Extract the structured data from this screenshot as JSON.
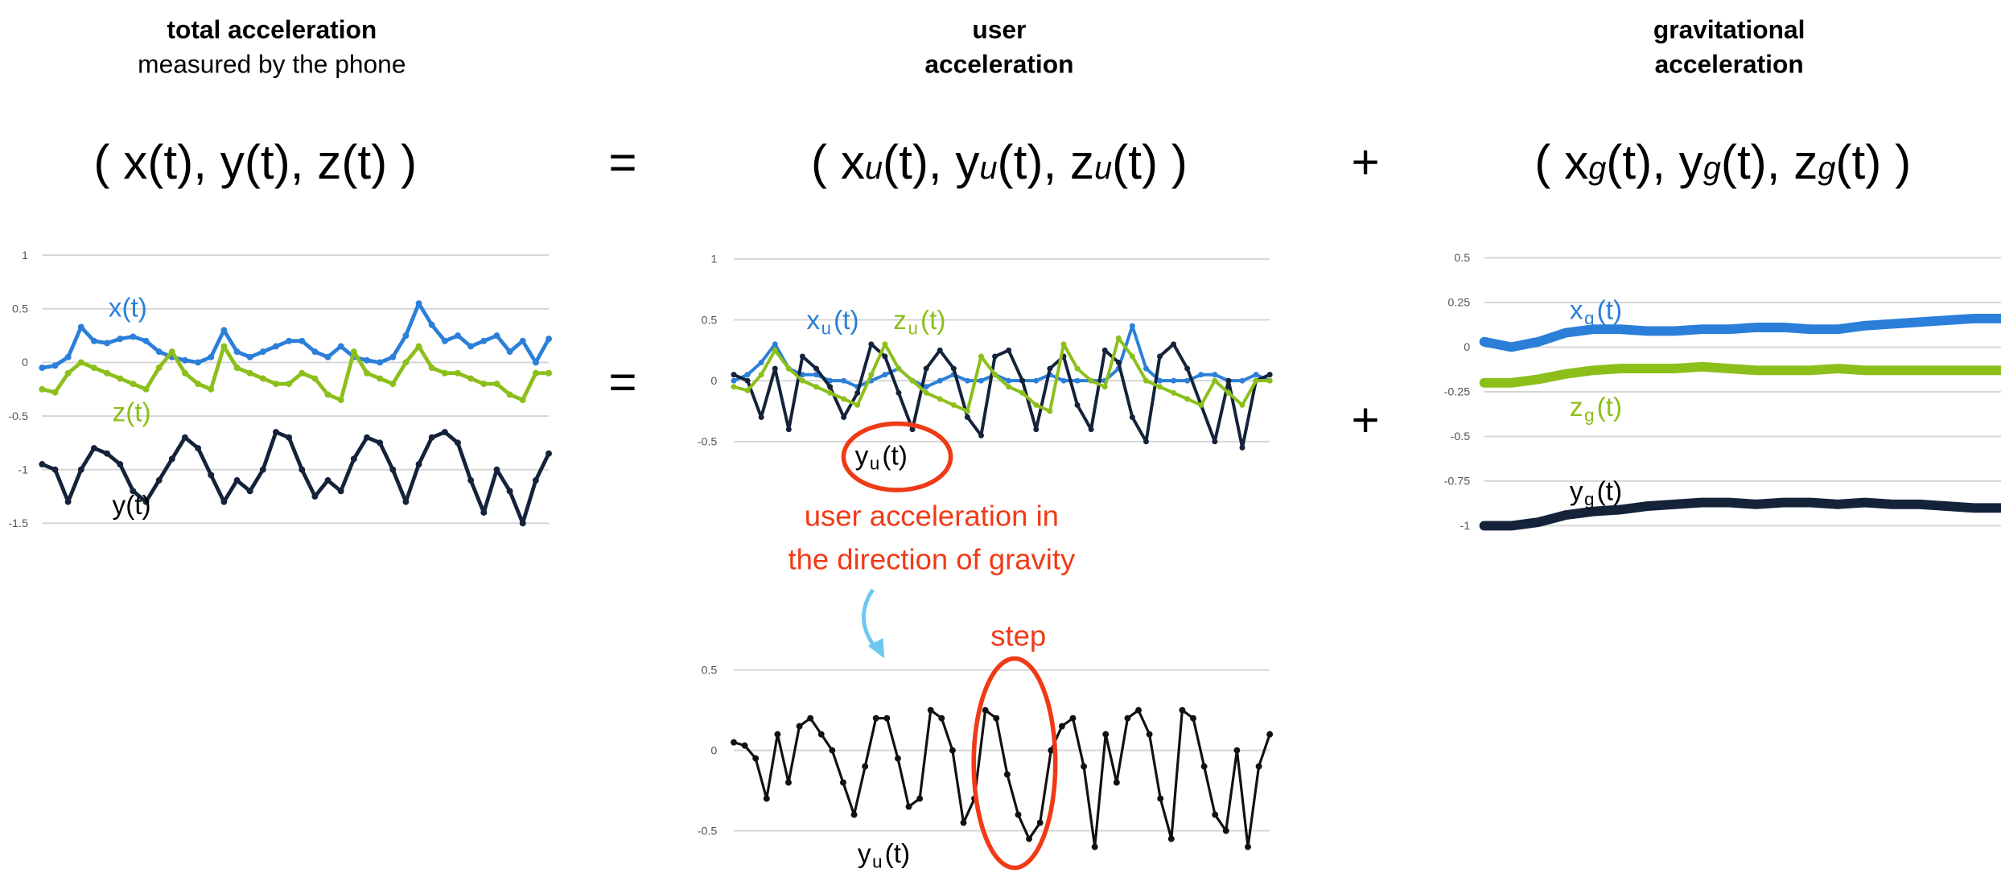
{
  "headers": {
    "total_title": "total acceleration",
    "total_subtitle": "measured by the phone",
    "user_line1": "user",
    "user_line2": "acceleration",
    "grav_line1": "gravitational",
    "grav_line2": "acceleration"
  },
  "formulas": {
    "total": "( x(t), y(t), z(t) )",
    "user": [
      "( x",
      "u",
      "(t), y",
      "u",
      "(t), z",
      "u",
      "(t) )"
    ],
    "grav": [
      "( x",
      "g",
      "(t), y",
      "g",
      "(t), z",
      "g",
      "(t) )"
    ],
    "equals": "=",
    "plus": "+"
  },
  "annotations": {
    "direction_line1": "user acceleration in",
    "direction_line2": "the direction of gravity",
    "step": "step"
  },
  "colors": {
    "x": "#2b7fd9",
    "z": "#8cbf1a",
    "y": "#14233a",
    "bottom": "#111111",
    "annotation": "#f03a17",
    "arrow": "#6cc8f0"
  },
  "chart_data": [
    {
      "type": "line",
      "yticks": [
        "1",
        "0.5",
        "0",
        "-0.5",
        "-1",
        "-1.5"
      ],
      "ylim": [
        -1.5,
        1
      ],
      "grid": true,
      "series": [
        {
          "name": "x(t)",
          "label_main": "x(t)",
          "color": "#2b7fd9",
          "values": [
            -0.05,
            -0.03,
            0.05,
            0.33,
            0.2,
            0.18,
            0.22,
            0.24,
            0.2,
            0.1,
            0.05,
            0.02,
            0.0,
            0.05,
            0.3,
            0.1,
            0.05,
            0.1,
            0.15,
            0.2,
            0.2,
            0.1,
            0.05,
            0.15,
            0.05,
            0.02,
            0.0,
            0.05,
            0.25,
            0.55,
            0.35,
            0.2,
            0.25,
            0.15,
            0.2,
            0.25,
            0.1,
            0.2,
            0.0,
            0.22
          ]
        },
        {
          "name": "z(t)",
          "label_main": "z(t)",
          "color": "#8cbf1a",
          "values": [
            -0.25,
            -0.28,
            -0.1,
            0.0,
            -0.05,
            -0.1,
            -0.15,
            -0.2,
            -0.25,
            -0.05,
            0.1,
            -0.1,
            -0.2,
            -0.25,
            0.15,
            -0.05,
            -0.1,
            -0.15,
            -0.2,
            -0.2,
            -0.1,
            -0.15,
            -0.3,
            -0.35,
            0.1,
            -0.1,
            -0.15,
            -0.2,
            0.0,
            0.15,
            -0.05,
            -0.1,
            -0.1,
            -0.15,
            -0.2,
            -0.2,
            -0.3,
            -0.35,
            -0.1,
            -0.1
          ]
        },
        {
          "name": "y(t)",
          "label_main": "y(t)",
          "color": "#14233a",
          "values": [
            -0.95,
            -1.0,
            -1.3,
            -1.0,
            -0.8,
            -0.85,
            -0.95,
            -1.2,
            -1.3,
            -1.1,
            -0.9,
            -0.7,
            -0.8,
            -1.05,
            -1.3,
            -1.1,
            -1.2,
            -1.0,
            -0.65,
            -0.7,
            -1.0,
            -1.25,
            -1.1,
            -1.2,
            -0.9,
            -0.7,
            -0.75,
            -1.0,
            -1.3,
            -0.95,
            -0.7,
            -0.65,
            -0.75,
            -1.1,
            -1.4,
            -1.0,
            -1.2,
            -1.5,
            -1.1,
            -0.85
          ]
        }
      ]
    },
    {
      "type": "line",
      "yticks": [
        "1",
        "0.5",
        "0",
        "-0.5"
      ],
      "ylim": [
        -0.5,
        1
      ],
      "grid": true,
      "series": [
        {
          "name": "xu(t)",
          "label_main": "x",
          "label_sub": "u",
          "label_tail": "(t)",
          "color": "#2b7fd9",
          "values": [
            0.0,
            0.05,
            0.15,
            0.3,
            0.1,
            0.05,
            0.05,
            0.0,
            0.0,
            -0.05,
            0.0,
            0.05,
            0.1,
            0.0,
            -0.05,
            0.0,
            0.05,
            0.0,
            0.0,
            0.05,
            0.0,
            0.0,
            0.0,
            0.05,
            0.0,
            0.0,
            0.0,
            0.0,
            0.1,
            0.45,
            0.1,
            0.0,
            0.0,
            0.0,
            0.05,
            0.05,
            0.0,
            0.0,
            0.05,
            0.0
          ]
        },
        {
          "name": "yu(t)",
          "label_main": "y",
          "label_sub": "u",
          "label_tail": "(t)",
          "color": "#14233a",
          "values": [
            0.05,
            0.0,
            -0.3,
            0.1,
            -0.4,
            0.2,
            0.1,
            -0.05,
            -0.3,
            -0.1,
            0.3,
            0.2,
            -0.1,
            -0.4,
            0.1,
            0.25,
            0.1,
            -0.3,
            -0.45,
            0.2,
            0.25,
            0.0,
            -0.4,
            0.1,
            0.2,
            -0.2,
            -0.4,
            0.25,
            0.15,
            -0.3,
            -0.5,
            0.2,
            0.3,
            0.1,
            -0.2,
            -0.5,
            0.0,
            -0.55,
            0.0,
            0.05
          ]
        },
        {
          "name": "zu(t)",
          "label_main": "z",
          "label_sub": "u",
          "label_tail": "(t)",
          "color": "#8cbf1a",
          "values": [
            -0.05,
            -0.08,
            0.05,
            0.25,
            0.1,
            0.0,
            -0.05,
            -0.1,
            -0.15,
            -0.2,
            0.05,
            0.3,
            0.1,
            0.0,
            -0.1,
            -0.15,
            -0.2,
            -0.25,
            0.2,
            0.05,
            -0.05,
            -0.1,
            -0.2,
            -0.25,
            0.3,
            0.1,
            0.0,
            -0.05,
            0.35,
            0.2,
            0.0,
            -0.05,
            -0.1,
            -0.15,
            -0.2,
            0.0,
            -0.1,
            -0.2,
            0.0,
            0.0
          ]
        }
      ]
    },
    {
      "type": "line",
      "yticks": [
        "0.5",
        "0.25",
        "0",
        "-0.25",
        "-0.5",
        "-0.75",
        "-1"
      ],
      "ylim": [
        -1,
        0.5
      ],
      "grid": true,
      "series": [
        {
          "name": "xg(t)",
          "label_main": "x",
          "label_sub": "g",
          "label_tail": "(t)",
          "color": "#2b7fd9",
          "values": [
            0.03,
            0.0,
            0.03,
            0.08,
            0.1,
            0.1,
            0.09,
            0.09,
            0.1,
            0.1,
            0.11,
            0.11,
            0.1,
            0.1,
            0.12,
            0.13,
            0.14,
            0.15,
            0.16,
            0.16
          ]
        },
        {
          "name": "zg(t)",
          "label_main": "z",
          "label_sub": "g",
          "label_tail": "(t)",
          "color": "#8cbf1a",
          "values": [
            -0.2,
            -0.2,
            -0.18,
            -0.15,
            -0.13,
            -0.12,
            -0.12,
            -0.12,
            -0.11,
            -0.12,
            -0.13,
            -0.13,
            -0.13,
            -0.12,
            -0.13,
            -0.13,
            -0.13,
            -0.13,
            -0.13,
            -0.13
          ]
        },
        {
          "name": "yg(t)",
          "label_main": "y",
          "label_sub": "g",
          "label_tail": "(t)",
          "color": "#14233a",
          "values": [
            -1,
            -1,
            -0.98,
            -0.94,
            -0.92,
            -0.91,
            -0.89,
            -0.88,
            -0.87,
            -0.87,
            -0.88,
            -0.87,
            -0.87,
            -0.88,
            -0.87,
            -0.88,
            -0.88,
            -0.89,
            -0.9,
            -0.9
          ]
        }
      ]
    },
    {
      "type": "line",
      "yticks": [
        "0.5",
        "0",
        "-0.5"
      ],
      "ylim": [
        -0.5,
        0.5
      ],
      "grid": true,
      "series": [
        {
          "name": "yu(t)",
          "label_main": "y",
          "label_sub": "u",
          "label_tail": "(t)",
          "color": "#111111",
          "values": [
            0.05,
            0.03,
            -0.05,
            -0.3,
            0.1,
            -0.2,
            0.15,
            0.2,
            0.1,
            0.0,
            -0.2,
            -0.4,
            -0.1,
            0.2,
            0.2,
            -0.05,
            -0.35,
            -0.3,
            0.25,
            0.2,
            0.0,
            -0.45,
            -0.3,
            0.25,
            0.2,
            -0.15,
            -0.4,
            -0.55,
            -0.45,
            0.0,
            0.15,
            0.2,
            -0.1,
            -0.6,
            0.1,
            -0.2,
            0.2,
            0.25,
            0.1,
            -0.3,
            -0.55,
            0.25,
            0.2,
            -0.1,
            -0.4,
            -0.5,
            0.0,
            -0.6,
            -0.1,
            0.1
          ]
        }
      ]
    }
  ]
}
